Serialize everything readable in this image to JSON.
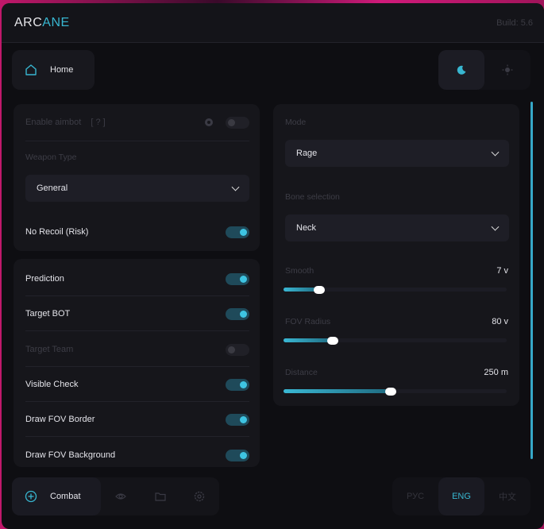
{
  "header": {
    "logo_a": "ARC",
    "logo_b": "ANE",
    "build": "Build: 5.6"
  },
  "nav": {
    "home": "Home"
  },
  "theme": {
    "active": "dark"
  },
  "left": {
    "enable_aimbot": {
      "label": "Enable aimbot",
      "help": "[ ? ]",
      "on": false
    },
    "weapon_type": {
      "label": "Weapon Type",
      "value": "General"
    },
    "no_recoil": {
      "label": "No Recoil (Risk)",
      "on": true
    },
    "prediction": {
      "label": "Prediction",
      "on": true
    },
    "target_bot": {
      "label": "Target BOT",
      "on": true
    },
    "target_team": {
      "label": "Target Team",
      "on": false
    },
    "visible_check": {
      "label": "Visible Check",
      "on": true
    },
    "draw_fov_border": {
      "label": "Draw FOV Border",
      "on": true
    },
    "draw_fov_background": {
      "label": "Draw FOV Background",
      "on": true
    }
  },
  "right": {
    "mode": {
      "label": "Mode",
      "value": "Rage"
    },
    "bone": {
      "label": "Bone selection",
      "value": "Neck"
    },
    "smooth": {
      "label": "Smooth",
      "value": "7 v",
      "fill_pct": 16
    },
    "fov": {
      "label": "FOV Radius",
      "value": "80 v",
      "fill_pct": 22
    },
    "distance": {
      "label": "Distance",
      "value": "250 m",
      "fill_pct": 48
    }
  },
  "bottom_nav": {
    "combat": "Combat",
    "active": "combat"
  },
  "languages": {
    "items": [
      "РУС",
      "ENG",
      "中文"
    ],
    "active": "ENG"
  },
  "colors": {
    "accent": "#38b6d0",
    "background": "#0e0e12",
    "panel": "#18181e"
  }
}
